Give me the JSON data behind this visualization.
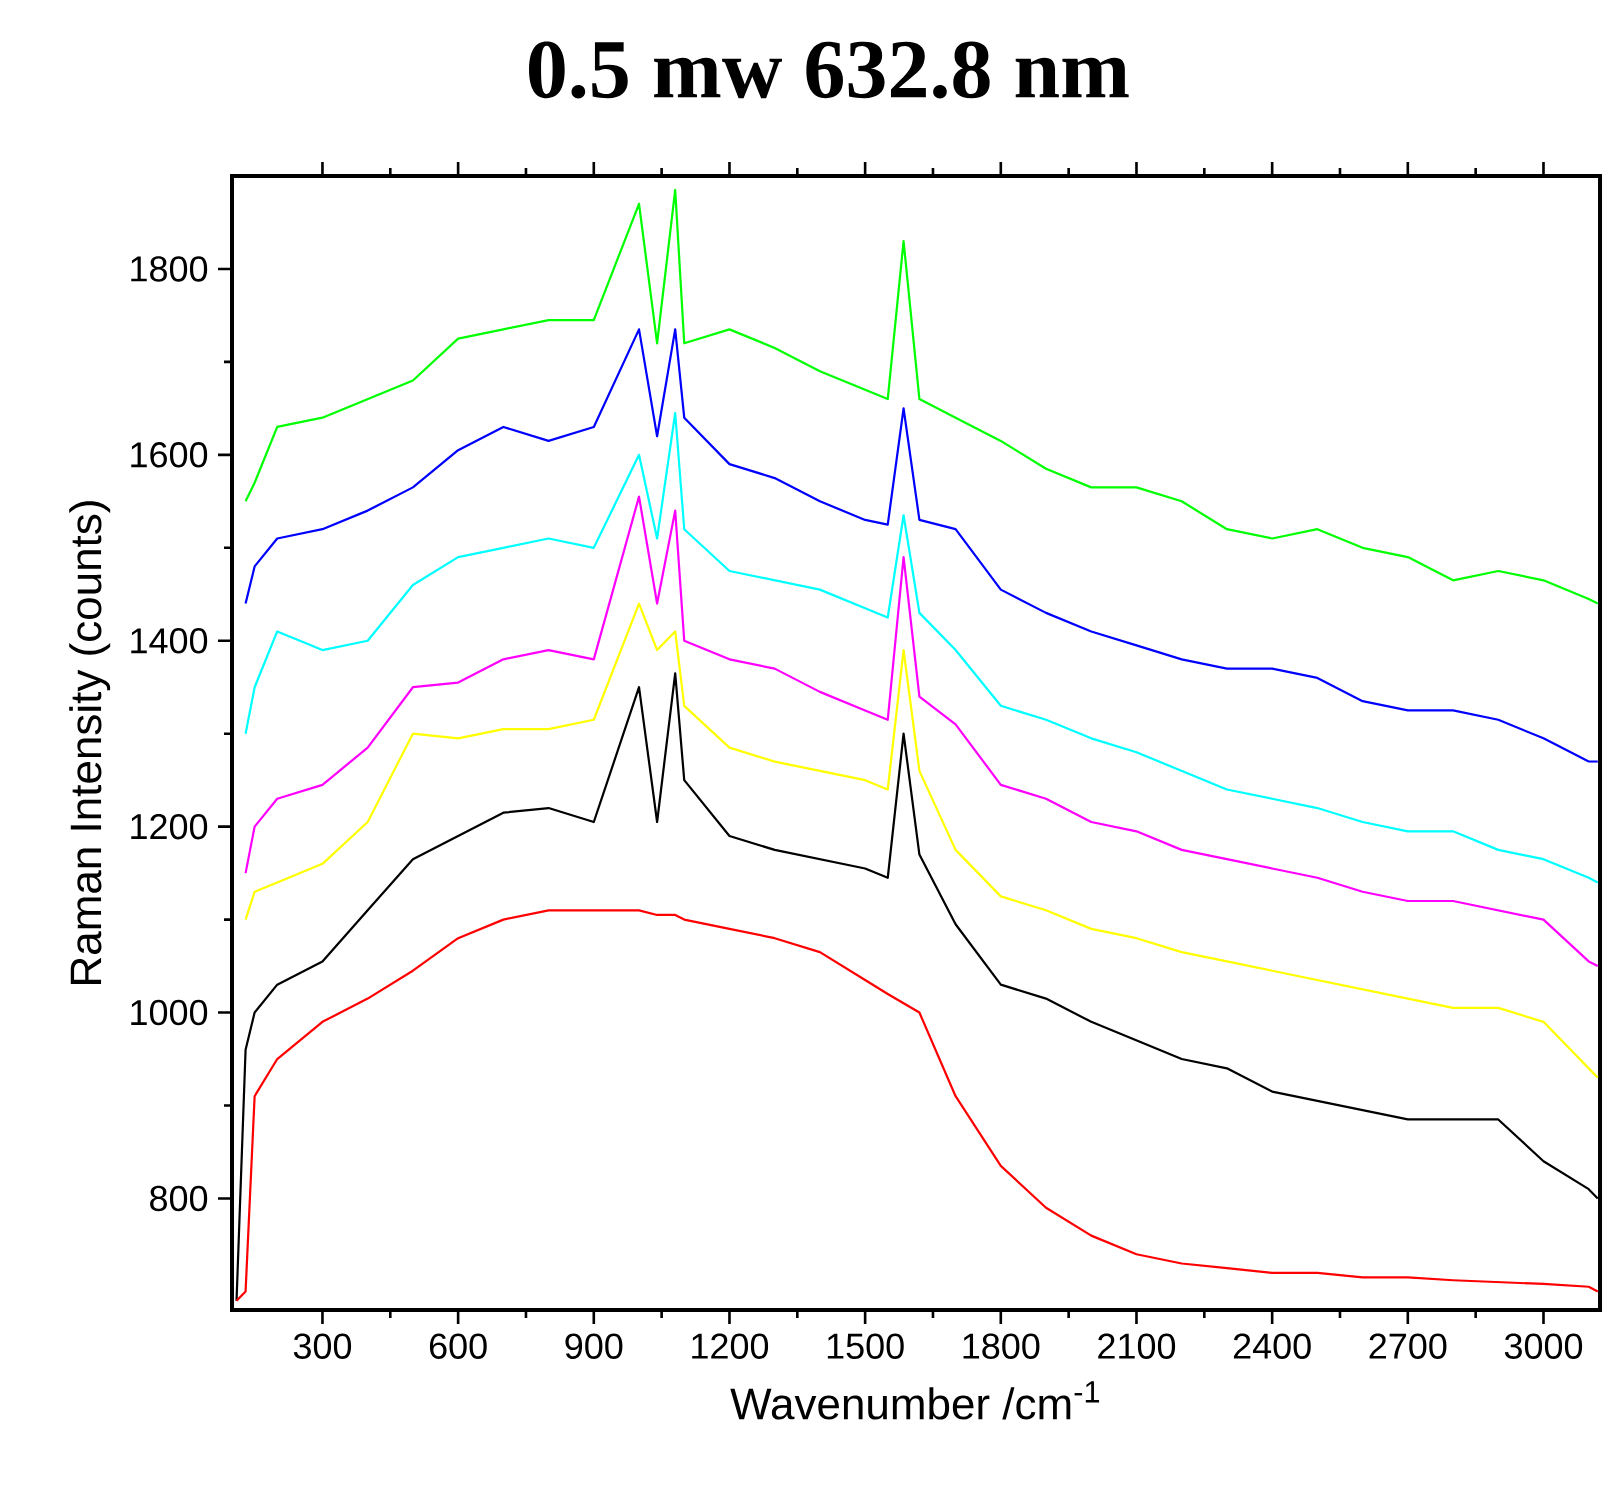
{
  "chart_data": {
    "type": "line",
    "title": "0.5 mw 632.8 nm",
    "xlabel": "Wavenumber /cm$^{-1}$",
    "ylabel": "Raman Intensity (counts)",
    "xlim": [
      100,
      3125
    ],
    "ylim": [
      680,
      1900
    ],
    "xticks": [
      300,
      600,
      900,
      1200,
      1500,
      1800,
      2100,
      2400,
      2700,
      3000
    ],
    "yticks": [
      800,
      1000,
      1200,
      1400,
      1600,
      1800
    ],
    "marker": "none",
    "line_style": "solid",
    "x": [
      110,
      130,
      150,
      200,
      300,
      400,
      500,
      600,
      700,
      800,
      900,
      1000,
      1040,
      1080,
      1100,
      1200,
      1300,
      1400,
      1500,
      1550,
      1585,
      1620,
      1700,
      1800,
      1900,
      2000,
      2100,
      2200,
      2300,
      2400,
      2500,
      2600,
      2700,
      2800,
      2900,
      3000,
      3100,
      3120
    ],
    "series": [
      {
        "color": "#00ff00",
        "values": [
          null,
          1550,
          1570,
          1630,
          1640,
          1660,
          1680,
          1725,
          1735,
          1745,
          1745,
          1870,
          1720,
          1885,
          1720,
          1735,
          1715,
          1690,
          1670,
          1660,
          1830,
          1660,
          1640,
          1615,
          1585,
          1565,
          1565,
          1550,
          1520,
          1510,
          1520,
          1500,
          1490,
          1465,
          1475,
          1465,
          1445,
          1440
        ]
      },
      {
        "color": "#0000ff",
        "values": [
          null,
          1440,
          1480,
          1510,
          1520,
          1540,
          1565,
          1605,
          1630,
          1615,
          1630,
          1735,
          1620,
          1735,
          1640,
          1590,
          1575,
          1550,
          1530,
          1525,
          1650,
          1530,
          1520,
          1455,
          1430,
          1410,
          1395,
          1380,
          1370,
          1370,
          1360,
          1335,
          1325,
          1325,
          1315,
          1295,
          1270,
          1270
        ]
      },
      {
        "color": "#00ffff",
        "values": [
          null,
          1300,
          1350,
          1410,
          1390,
          1400,
          1460,
          1490,
          1500,
          1510,
          1500,
          1600,
          1510,
          1645,
          1520,
          1475,
          1465,
          1455,
          1435,
          1425,
          1535,
          1430,
          1390,
          1330,
          1315,
          1295,
          1280,
          1260,
          1240,
          1230,
          1220,
          1205,
          1195,
          1195,
          1175,
          1165,
          1145,
          1140
        ]
      },
      {
        "color": "#ff00ff",
        "values": [
          null,
          1150,
          1200,
          1230,
          1245,
          1285,
          1350,
          1355,
          1380,
          1390,
          1380,
          1555,
          1440,
          1540,
          1400,
          1380,
          1370,
          1345,
          1325,
          1315,
          1490,
          1340,
          1310,
          1245,
          1230,
          1205,
          1195,
          1175,
          1165,
          1155,
          1145,
          1130,
          1120,
          1120,
          1110,
          1100,
          1055,
          1050
        ]
      },
      {
        "color": "#ffff00",
        "values": [
          null,
          1100,
          1130,
          1140,
          1160,
          1205,
          1300,
          1295,
          1305,
          1305,
          1315,
          1440,
          1390,
          1410,
          1330,
          1285,
          1270,
          1260,
          1250,
          1240,
          1390,
          1260,
          1175,
          1125,
          1110,
          1090,
          1080,
          1065,
          1055,
          1045,
          1035,
          1025,
          1015,
          1005,
          1005,
          990,
          940,
          930
        ]
      },
      {
        "color": "#000000",
        "values": [
          690,
          960,
          1000,
          1030,
          1055,
          1110,
          1165,
          1190,
          1215,
          1220,
          1205,
          1350,
          1205,
          1365,
          1250,
          1190,
          1175,
          1165,
          1155,
          1145,
          1300,
          1170,
          1095,
          1030,
          1015,
          990,
          970,
          950,
          940,
          915,
          905,
          895,
          885,
          885,
          885,
          840,
          810,
          800
        ]
      },
      {
        "color": "#ff0000",
        "values": [
          690,
          700,
          910,
          950,
          990,
          1015,
          1045,
          1080,
          1100,
          1110,
          1110,
          1110,
          1105,
          1105,
          1100,
          1090,
          1080,
          1065,
          1035,
          1020,
          1010,
          1000,
          910,
          835,
          790,
          760,
          740,
          730,
          725,
          720,
          720,
          715,
          715,
          712,
          710,
          708,
          705,
          700
        ]
      }
    ]
  }
}
